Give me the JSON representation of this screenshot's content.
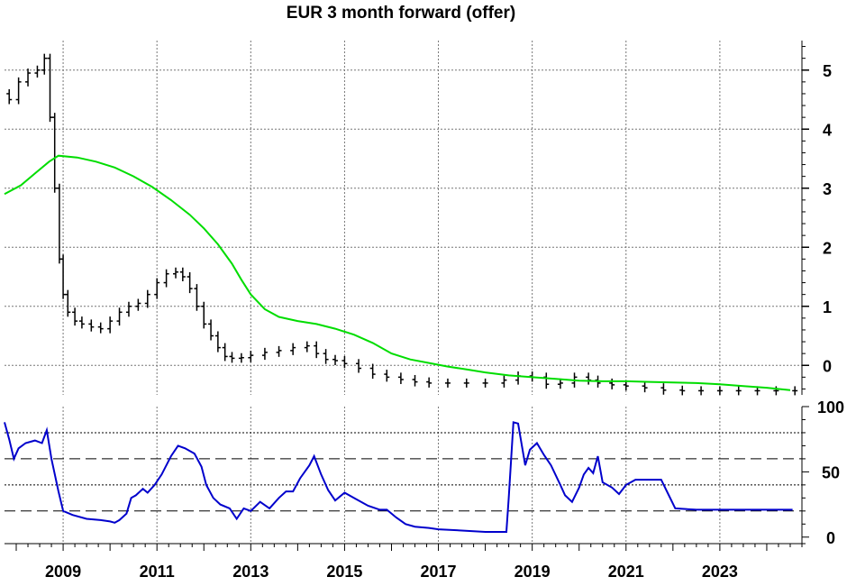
{
  "chart_data": [
    {
      "type": "line",
      "title": "EUR 3 month forward (offer)",
      "xlim": [
        2007.75,
        2024.75
      ],
      "ylim": [
        -0.5,
        5.5
      ],
      "x_ticks": [
        {
          "value": 2009,
          "label": "2009"
        },
        {
          "value": 2011,
          "label": "2011"
        },
        {
          "value": 2013,
          "label": "2013"
        },
        {
          "value": 2015,
          "label": "2015"
        },
        {
          "value": 2017,
          "label": "2017"
        },
        {
          "value": 2019,
          "label": "2019"
        },
        {
          "value": 2021,
          "label": "2021"
        },
        {
          "value": 2023,
          "label": "2023"
        }
      ],
      "y_ticks": [
        0,
        1,
        2,
        3,
        4,
        5
      ],
      "grid": true,
      "series": [
        {
          "style": "ohlc-bars",
          "color": "#000000",
          "x": [
            2007.85,
            2008.05,
            2008.25,
            2008.45,
            2008.6,
            2008.72,
            2008.82,
            2008.92,
            2009.0,
            2009.1,
            2009.25,
            2009.4,
            2009.6,
            2009.8,
            2010.0,
            2010.2,
            2010.4,
            2010.6,
            2010.8,
            2011.0,
            2011.2,
            2011.4,
            2011.55,
            2011.7,
            2011.85,
            2012.0,
            2012.15,
            2012.3,
            2012.45,
            2012.6,
            2012.8,
            2013.0,
            2013.3,
            2013.6,
            2013.9,
            2014.2,
            2014.4,
            2014.6,
            2014.8,
            2015.0,
            2015.3,
            2015.6,
            2015.9,
            2016.2,
            2016.5,
            2016.8,
            2017.2,
            2017.6,
            2018.0,
            2018.4,
            2018.7,
            2019.0,
            2019.3,
            2019.6,
            2019.9,
            2020.2,
            2020.4,
            2020.7,
            2021.0,
            2021.4,
            2021.8,
            2022.2,
            2022.6,
            2023.0,
            2023.4,
            2023.8,
            2024.2,
            2024.6
          ],
          "y": [
            4.6,
            4.5,
            4.8,
            4.95,
            5.0,
            5.2,
            4.2,
            3.0,
            1.8,
            1.2,
            0.9,
            0.75,
            0.7,
            0.65,
            0.62,
            0.75,
            0.9,
            1.0,
            1.05,
            1.2,
            1.4,
            1.55,
            1.58,
            1.5,
            1.3,
            1.0,
            0.7,
            0.5,
            0.3,
            0.15,
            0.12,
            0.13,
            0.17,
            0.22,
            0.25,
            0.3,
            0.33,
            0.2,
            0.1,
            0.08,
            0.03,
            -0.05,
            -0.15,
            -0.2,
            -0.24,
            -0.28,
            -0.3,
            -0.3,
            -0.3,
            -0.3,
            -0.25,
            -0.18,
            -0.2,
            -0.32,
            -0.3,
            -0.2,
            -0.25,
            -0.3,
            -0.33,
            -0.35,
            -0.38,
            -0.42,
            -0.43,
            -0.43,
            -0.43,
            -0.43,
            -0.43,
            -0.43
          ]
        },
        {
          "style": "line",
          "color": "#00dd00",
          "x": [
            2007.75,
            2008.1,
            2008.4,
            2008.7,
            2008.9,
            2009.3,
            2009.7,
            2010.1,
            2010.5,
            2010.9,
            2011.3,
            2011.7,
            2012.0,
            2012.3,
            2012.6,
            2012.8,
            2013.0,
            2013.3,
            2013.6,
            2014.0,
            2014.4,
            2014.8,
            2015.2,
            2015.6,
            2016.0,
            2016.4,
            2016.8,
            2017.2,
            2017.6,
            2018.0,
            2018.5,
            2019.0,
            2019.5,
            2020.0,
            2020.5,
            2021.0,
            2021.5,
            2022.0,
            2022.5,
            2023.0,
            2023.5,
            2024.0,
            2024.5
          ],
          "y": [
            2.9,
            3.05,
            3.25,
            3.45,
            3.55,
            3.52,
            3.45,
            3.35,
            3.2,
            3.02,
            2.8,
            2.55,
            2.32,
            2.05,
            1.72,
            1.45,
            1.2,
            0.95,
            0.82,
            0.75,
            0.7,
            0.62,
            0.52,
            0.38,
            0.2,
            0.1,
            0.04,
            -0.02,
            -0.07,
            -0.12,
            -0.17,
            -0.2,
            -0.23,
            -0.26,
            -0.27,
            -0.27,
            -0.28,
            -0.29,
            -0.3,
            -0.32,
            -0.35,
            -0.38,
            -0.42
          ]
        }
      ]
    },
    {
      "type": "line",
      "ylim": [
        -5,
        100
      ],
      "y_ticks": [
        0,
        50,
        100
      ],
      "reference_lines": [
        {
          "value": 80,
          "style": "dotted"
        },
        {
          "value": 60,
          "style": "dashed"
        },
        {
          "value": 40,
          "style": "dotted"
        },
        {
          "value": 20,
          "style": "dashed"
        }
      ],
      "series": [
        {
          "color": "#0000cc",
          "x": [
            2007.75,
            2007.85,
            2007.95,
            2008.05,
            2008.2,
            2008.4,
            2008.55,
            2008.65,
            2008.75,
            2008.9,
            2009.0,
            2009.2,
            2009.5,
            2009.8,
            2010.0,
            2010.1,
            2010.2,
            2010.35,
            2010.45,
            2010.55,
            2010.7,
            2010.8,
            2010.95,
            2011.1,
            2011.3,
            2011.45,
            2011.6,
            2011.8,
            2011.95,
            2012.05,
            2012.2,
            2012.35,
            2012.55,
            2012.7,
            2012.85,
            2013.0,
            2013.2,
            2013.4,
            2013.6,
            2013.75,
            2013.9,
            2014.05,
            2014.25,
            2014.35,
            2014.5,
            2014.65,
            2014.8,
            2015.0,
            2015.25,
            2015.5,
            2015.75,
            2015.9,
            2016.1,
            2016.3,
            2016.5,
            2016.8,
            2017.0,
            2017.5,
            2018.0,
            2018.3,
            2018.45,
            2018.5,
            2018.6,
            2018.7,
            2018.78,
            2018.85,
            2018.95,
            2019.1,
            2019.25,
            2019.4,
            2019.6,
            2019.7,
            2019.85,
            2020.0,
            2020.1,
            2020.2,
            2020.3,
            2020.4,
            2020.5,
            2020.7,
            2020.85,
            2021.0,
            2021.2,
            2021.35,
            2021.5,
            2021.75,
            2021.9,
            2022.05,
            2022.5,
            2023.0,
            2023.5,
            2024.0,
            2024.55
          ],
          "y": [
            88,
            75,
            60,
            68,
            72,
            74,
            72,
            82,
            60,
            35,
            20,
            17,
            14,
            13,
            12,
            11,
            13,
            18,
            30,
            32,
            37,
            34,
            40,
            48,
            62,
            70,
            68,
            64,
            54,
            40,
            30,
            25,
            22,
            14,
            22,
            20,
            27,
            22,
            30,
            35,
            35,
            45,
            55,
            62,
            48,
            36,
            28,
            34,
            29,
            24,
            21,
            21,
            15,
            10,
            8,
            7,
            6,
            5,
            4,
            4,
            4,
            30,
            88,
            87,
            70,
            55,
            67,
            72,
            63,
            55,
            40,
            32,
            27,
            38,
            48,
            53,
            49,
            62,
            42,
            38,
            33,
            40,
            44,
            44,
            44,
            44,
            33,
            22,
            21,
            21,
            21,
            21,
            21
          ]
        }
      ]
    }
  ]
}
